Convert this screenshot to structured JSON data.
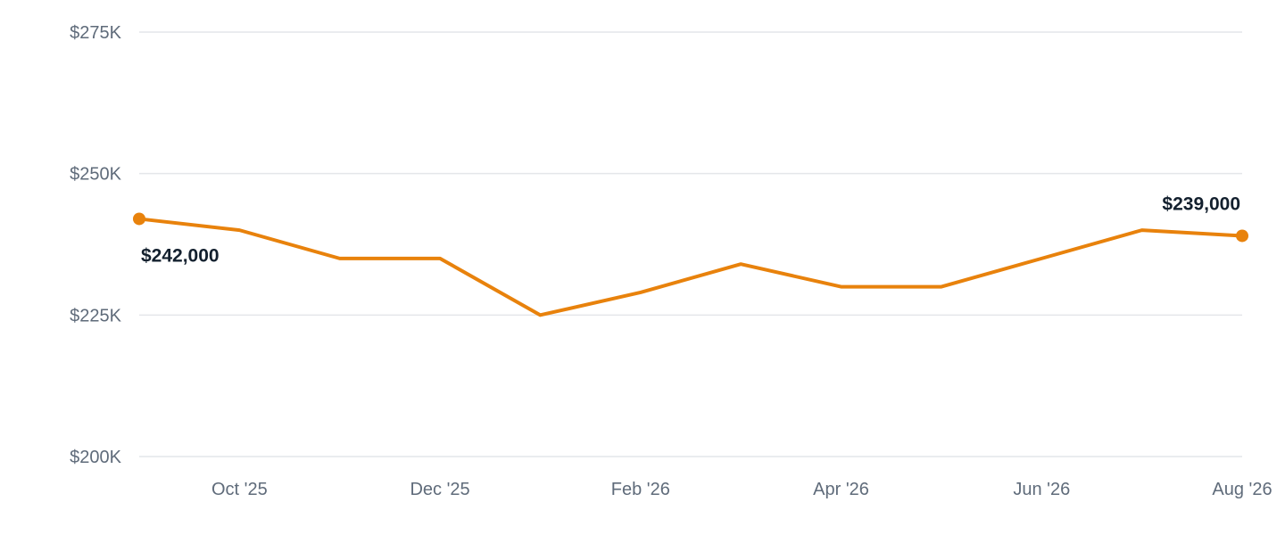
{
  "chart_data": {
    "type": "line",
    "x": [
      "2025-09",
      "2025-10",
      "2025-11",
      "2025-12",
      "2026-01",
      "2026-02",
      "2026-03",
      "2026-04",
      "2026-05",
      "2026-06",
      "2026-07",
      "2026-08"
    ],
    "series": [
      {
        "values": [
          242000,
          240000,
          235000,
          235000,
          225000,
          229000,
          234000,
          230000,
          230000,
          235000,
          240000,
          239000
        ]
      }
    ],
    "x_tick_labels": [
      {
        "x": "2025-10",
        "label": "Oct '25"
      },
      {
        "x": "2025-12",
        "label": "Dec '25"
      },
      {
        "x": "2026-02",
        "label": "Feb '26"
      },
      {
        "x": "2026-04",
        "label": "Apr '26"
      },
      {
        "x": "2026-06",
        "label": "Jun '26"
      },
      {
        "x": "2026-08",
        "label": "Aug '26"
      }
    ],
    "y_ticks": [
      200000,
      225000,
      250000,
      275000
    ],
    "y_tick_labels": [
      "$200K",
      "$225K",
      "$250K",
      "$275K"
    ],
    "ylim": [
      200000,
      275000
    ],
    "data_labels": [
      {
        "x": "2025-09",
        "label": "$242,000"
      },
      {
        "x": "2026-08",
        "label": "$239,000"
      }
    ],
    "line_color": "#e8820c",
    "grid": true,
    "title": "",
    "xlabel": "",
    "ylabel": ""
  }
}
